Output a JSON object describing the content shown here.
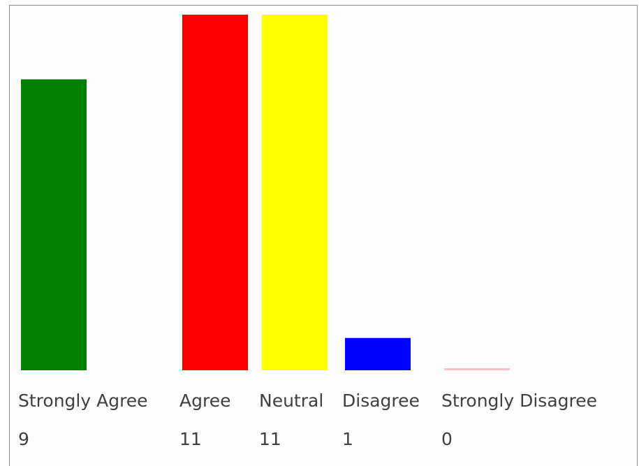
{
  "chart_data": {
    "type": "bar",
    "title": "",
    "xlabel": "",
    "ylabel": "",
    "categories": [
      "Strongly Agree",
      "Agree",
      "Neutral",
      "Disagree",
      "Strongly Disagree"
    ],
    "values": [
      9,
      11,
      11,
      1,
      0
    ],
    "value_labels": [
      "9",
      "11",
      "11",
      "1",
      "0"
    ],
    "colors": [
      "#008000",
      "#ff0000",
      "#ffff00",
      "#0000ff",
      "#ffc0cb"
    ],
    "ylim": [
      0,
      11
    ],
    "grid": false,
    "legend": "none"
  }
}
